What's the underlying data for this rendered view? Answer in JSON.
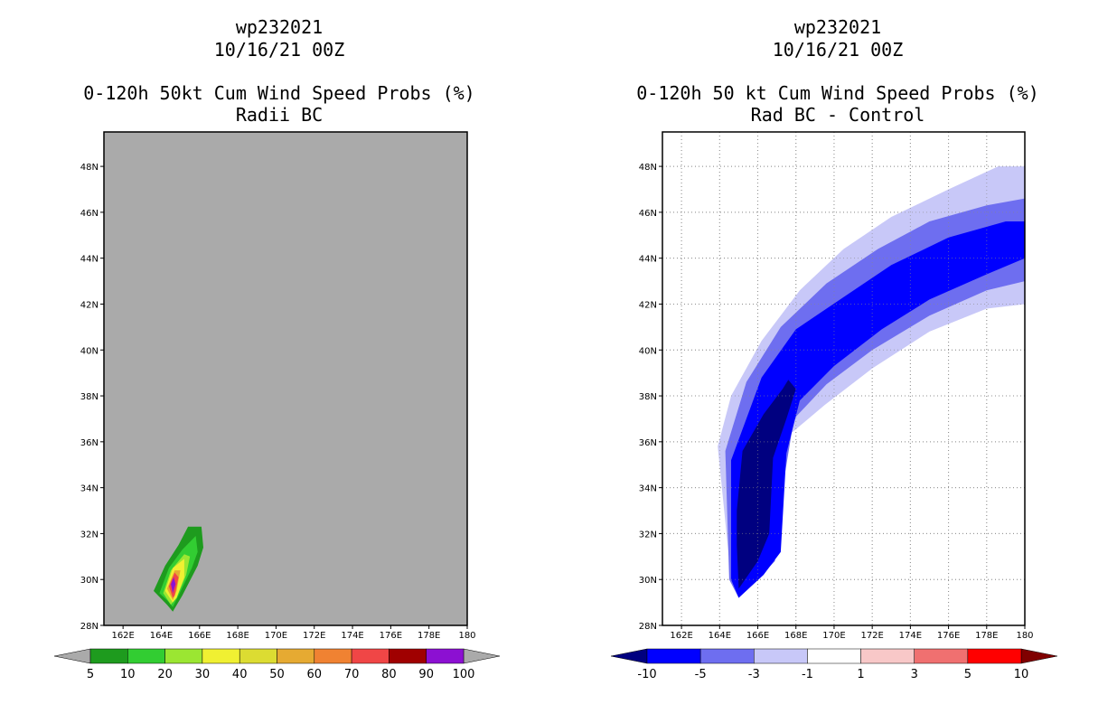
{
  "panels": [
    {
      "storm_id": "wp232021",
      "datetime": "10/16/21 00Z",
      "title": "0-120h 50kt Cum Wind Speed Probs (%)",
      "subtitle": "Radii BC"
    },
    {
      "storm_id": "wp232021",
      "datetime": "10/16/21 00Z",
      "title": "0-120h 50 kt Cum Wind Speed Probs (%)",
      "subtitle": "Rad BC - Control"
    }
  ],
  "chart_data": [
    {
      "type": "heatmap",
      "title": "0-120h 50kt Cum Wind Speed Probs (%)",
      "subtitle": "Radii BC",
      "x_ticks": [
        162,
        164,
        166,
        168,
        170,
        172,
        174,
        176,
        178,
        180
      ],
      "x_tick_labels": [
        "162E",
        "164E",
        "166E",
        "168E",
        "170E",
        "172E",
        "174E",
        "176E",
        "178E",
        "180"
      ],
      "y_ticks": [
        28,
        30,
        32,
        34,
        36,
        38,
        40,
        42,
        44,
        46,
        48
      ],
      "y_tick_labels": [
        "28N",
        "30N",
        "32N",
        "34N",
        "36N",
        "38N",
        "40N",
        "42N",
        "44N",
        "46N",
        "48N"
      ],
      "xlim": [
        161,
        180
      ],
      "ylim": [
        28,
        49.5
      ],
      "grid": false,
      "background": "#aaaaaa",
      "colorbar": {
        "labels": [
          "5",
          "10",
          "20",
          "30",
          "40",
          "50",
          "60",
          "70",
          "80",
          "90",
          "100"
        ],
        "colors": [
          "#1e9b1e",
          "#32cd32",
          "#9be632",
          "#f0f032",
          "#dcdc32",
          "#e6aa32",
          "#f08232",
          "#f04646",
          "#a00000",
          "#8c10d2"
        ],
        "under_color": "#aaaaaa",
        "over_color": "#aaaaaa"
      },
      "contours": [
        {
          "level": 5,
          "color": "#1e9b1e",
          "points": [
            [
              163.6,
              29.5
            ],
            [
              164.2,
              30.6
            ],
            [
              164.9,
              31.5
            ],
            [
              165.4,
              32.3
            ],
            [
              166.1,
              32.3
            ],
            [
              166.2,
              31.4
            ],
            [
              165.9,
              30.6
            ],
            [
              165.1,
              29.3
            ],
            [
              164.6,
              28.6
            ],
            [
              164.3,
              28.9
            ]
          ]
        },
        {
          "level": 10,
          "color": "#32cd32",
          "points": [
            [
              163.9,
              29.4
            ],
            [
              164.4,
              30.5
            ],
            [
              165.1,
              31.3
            ],
            [
              165.8,
              31.9
            ],
            [
              165.9,
              31.2
            ],
            [
              165.6,
              30.5
            ],
            [
              164.9,
              29.3
            ],
            [
              164.6,
              28.8
            ],
            [
              164.3,
              29.1
            ]
          ]
        },
        {
          "level": 20,
          "color": "#9be632",
          "points": [
            [
              164.1,
              29.4
            ],
            [
              164.5,
              30.4
            ],
            [
              165.2,
              31.1
            ],
            [
              165.5,
              31.0
            ],
            [
              165.3,
              30.2
            ],
            [
              164.8,
              29.2
            ],
            [
              164.5,
              28.9
            ]
          ]
        },
        {
          "level": 30,
          "color": "#f0f032",
          "points": [
            [
              164.2,
              29.5
            ],
            [
              164.6,
              30.5
            ],
            [
              165.2,
              30.9
            ],
            [
              165.2,
              30.1
            ],
            [
              164.8,
              29.2
            ],
            [
              164.6,
              29.0
            ]
          ]
        },
        {
          "level": 50,
          "color": "#e6aa32",
          "points": [
            [
              164.3,
              29.6
            ],
            [
              164.7,
              30.4
            ],
            [
              165.0,
              30.4
            ],
            [
              164.8,
              29.5
            ],
            [
              164.6,
              29.1
            ]
          ]
        },
        {
          "level": 70,
          "color": "#f04646",
          "points": [
            [
              164.4,
              29.7
            ],
            [
              164.7,
              30.3
            ],
            [
              164.9,
              30.1
            ],
            [
              164.7,
              29.3
            ],
            [
              164.6,
              29.2
            ]
          ]
        },
        {
          "level": 90,
          "color": "#8c10d2",
          "points": [
            [
              164.5,
              29.8
            ],
            [
              164.65,
              30.1
            ],
            [
              164.75,
              29.8
            ],
            [
              164.6,
              29.4
            ]
          ]
        }
      ]
    },
    {
      "type": "heatmap",
      "title": "0-120h 50 kt Cum Wind Speed Probs (%)",
      "subtitle": "Rad BC - Control",
      "x_ticks": [
        162,
        164,
        166,
        168,
        170,
        172,
        174,
        176,
        178,
        180
      ],
      "x_tick_labels": [
        "162E",
        "164E",
        "166E",
        "168E",
        "170E",
        "172E",
        "174E",
        "176E",
        "178E",
        "180"
      ],
      "y_ticks": [
        28,
        30,
        32,
        34,
        36,
        38,
        40,
        42,
        44,
        46,
        48
      ],
      "y_tick_labels": [
        "28N",
        "30N",
        "32N",
        "34N",
        "36N",
        "38N",
        "40N",
        "42N",
        "44N",
        "46N",
        "48N"
      ],
      "xlim": [
        161,
        180
      ],
      "ylim": [
        28,
        49.5
      ],
      "grid": true,
      "background": "#ffffff",
      "colorbar": {
        "labels": [
          "-10",
          "-5",
          "-3",
          "-1",
          "1",
          "3",
          "5",
          "10"
        ],
        "colors": [
          "#0000ff",
          "#6e6ef0",
          "#c8c8f8",
          "#ffffff",
          "#f8c8c8",
          "#f07070",
          "#ff0000"
        ],
        "under_color": "#000080",
        "over_color": "#800000"
      },
      "contours": [
        {
          "level": -1,
          "color": "#c8c8f8",
          "points": [
            [
              163.9,
              35.8
            ],
            [
              164.6,
              38.0
            ],
            [
              166.2,
              40.4
            ],
            [
              168.2,
              42.6
            ],
            [
              170.5,
              44.4
            ],
            [
              173.0,
              45.8
            ],
            [
              176.0,
              47.0
            ],
            [
              178.6,
              48.0
            ],
            [
              180,
              48.0
            ],
            [
              180,
              42.0
            ],
            [
              178.0,
              41.8
            ],
            [
              175.0,
              40.8
            ],
            [
              172.0,
              39.2
            ],
            [
              169.5,
              37.6
            ],
            [
              167.5,
              36.2
            ],
            [
              166.8,
              33.5
            ],
            [
              166.6,
              30.8
            ],
            [
              166.0,
              30.2
            ],
            [
              165.0,
              29.2
            ],
            [
              164.6,
              30.0
            ]
          ]
        },
        {
          "level": -3,
          "color": "#6e6ef0",
          "points": [
            [
              164.3,
              35.6
            ],
            [
              165.4,
              38.6
            ],
            [
              167.2,
              41.0
            ],
            [
              169.6,
              42.9
            ],
            [
              172.3,
              44.4
            ],
            [
              175.0,
              45.6
            ],
            [
              178.0,
              46.3
            ],
            [
              180,
              46.6
            ],
            [
              180,
              43.0
            ],
            [
              178.0,
              42.6
            ],
            [
              175.0,
              41.5
            ],
            [
              172.0,
              40.0
            ],
            [
              169.6,
              38.5
            ],
            [
              167.9,
              37.0
            ],
            [
              167.2,
              33.5
            ],
            [
              166.9,
              30.8
            ],
            [
              166.1,
              30.1
            ],
            [
              165.0,
              29.2
            ],
            [
              164.5,
              30.0
            ]
          ]
        },
        {
          "level": -5,
          "color": "#0000ff",
          "points": [
            [
              164.6,
              35.2
            ],
            [
              166.2,
              38.8
            ],
            [
              168.0,
              40.9
            ],
            [
              170.5,
              42.3
            ],
            [
              173.0,
              43.7
            ],
            [
              176.0,
              44.9
            ],
            [
              179.0,
              45.6
            ],
            [
              180,
              45.6
            ],
            [
              180,
              44.0
            ],
            [
              178.0,
              43.3
            ],
            [
              175.0,
              42.2
            ],
            [
              172.5,
              40.9
            ],
            [
              170.0,
              39.3
            ],
            [
              168.2,
              37.8
            ],
            [
              167.5,
              35.5
            ],
            [
              167.2,
              31.2
            ],
            [
              166.3,
              30.2
            ],
            [
              165.0,
              29.2
            ],
            [
              164.6,
              30.0
            ]
          ]
        },
        {
          "level": -10,
          "color": "#000080",
          "points": [
            [
              164.9,
              33.0
            ],
            [
              165.2,
              35.6
            ],
            [
              166.3,
              37.2
            ],
            [
              167.3,
              38.3
            ],
            [
              167.6,
              38.7
            ],
            [
              168.0,
              38.3
            ],
            [
              167.5,
              37.0
            ],
            [
              166.8,
              35.3
            ],
            [
              166.6,
              32.0
            ],
            [
              166.0,
              30.8
            ],
            [
              165.0,
              29.6
            ],
            [
              164.9,
              31.5
            ]
          ]
        }
      ]
    }
  ]
}
